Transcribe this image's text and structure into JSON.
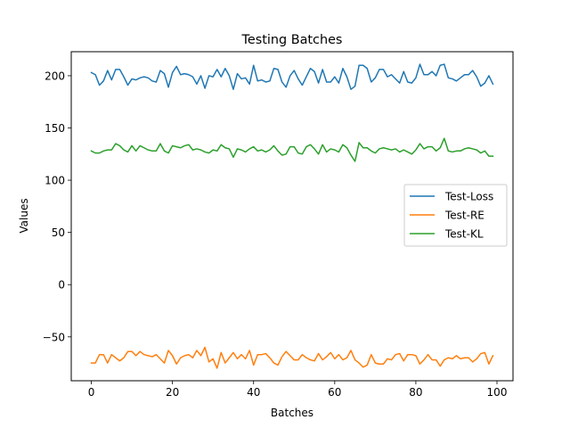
{
  "chart_data": {
    "type": "line",
    "title": "Testing Batches",
    "xlabel": "Batches",
    "ylabel": "Values",
    "xlim": [
      -4.95,
      103.95
    ],
    "ylim": [
      -92,
      223
    ],
    "xticks": [
      0,
      20,
      40,
      60,
      80,
      100
    ],
    "yticks": [
      -50,
      0,
      50,
      100,
      150,
      200
    ],
    "grid": false,
    "legend_position": "center-right",
    "series": [
      {
        "name": "Test-Loss",
        "color": "#1f77b4",
        "values": [
          203,
          201,
          191,
          195,
          205,
          196,
          206,
          206,
          199,
          191,
          197,
          196,
          198,
          199,
          198,
          195,
          194,
          205,
          202,
          189,
          203,
          209,
          201,
          202,
          201,
          199,
          192,
          200,
          188,
          200,
          199,
          206,
          199,
          207,
          200,
          187,
          202,
          197,
          198,
          192,
          210,
          195,
          196,
          194,
          195,
          207,
          206,
          194,
          189,
          200,
          205,
          197,
          191,
          199,
          207,
          204,
          193,
          206,
          194,
          194,
          199,
          193,
          207,
          199,
          187,
          190,
          210,
          210,
          207,
          194,
          198,
          206,
          206,
          199,
          201,
          197,
          193,
          204,
          194,
          193,
          198,
          211,
          201,
          201,
          204,
          200,
          210,
          211,
          198,
          197,
          195,
          198,
          201,
          201,
          205,
          199,
          190,
          193,
          200,
          192
        ]
      },
      {
        "name": "Test-RE",
        "color": "#ff7f0e",
        "values": [
          -75,
          -75,
          -67,
          -67,
          -75,
          -67,
          -70,
          -73,
          -70,
          -64,
          -64,
          -68,
          -64,
          -67,
          -68,
          -69,
          -67,
          -71,
          -75,
          -63,
          -68,
          -76,
          -70,
          -68,
          -67,
          -70,
          -63,
          -68,
          -60,
          -74,
          -71,
          -80,
          -65,
          -75,
          -70,
          -65,
          -71,
          -67,
          -71,
          -63,
          -77,
          -67,
          -67,
          -66,
          -70,
          -75,
          -77,
          -69,
          -64,
          -68,
          -72,
          -72,
          -67,
          -70,
          -72,
          -73,
          -66,
          -72,
          -69,
          -65,
          -71,
          -67,
          -72,
          -70,
          -63,
          -72,
          -75,
          -79,
          -77,
          -67,
          -75,
          -76,
          -76,
          -71,
          -72,
          -67,
          -66,
          -73,
          -67,
          -67,
          -68,
          -76,
          -72,
          -67,
          -72,
          -72,
          -78,
          -72,
          -70,
          -71,
          -68,
          -71,
          -70,
          -70,
          -74,
          -71,
          -66,
          -65,
          -76,
          -68
        ]
      },
      {
        "name": "Test-KL",
        "color": "#2ca02c",
        "values": [
          128,
          126,
          126,
          128,
          129,
          129,
          135,
          133,
          129,
          127,
          133,
          128,
          133,
          131,
          129,
          128,
          128,
          135,
          128,
          126,
          133,
          132,
          131,
          133,
          134,
          129,
          130,
          129,
          127,
          126,
          129,
          128,
          134,
          131,
          130,
          122,
          130,
          129,
          127,
          130,
          132,
          128,
          129,
          127,
          129,
          133,
          128,
          124,
          125,
          132,
          132,
          126,
          125,
          132,
          134,
          130,
          125,
          134,
          127,
          130,
          129,
          127,
          134,
          131,
          124,
          118,
          136,
          131,
          131,
          128,
          126,
          130,
          131,
          130,
          129,
          130,
          127,
          129,
          127,
          125,
          129,
          135,
          130,
          132,
          132,
          128,
          131,
          140,
          128,
          127,
          128,
          128,
          130,
          131,
          130,
          129,
          126,
          128,
          123,
          123
        ]
      }
    ]
  }
}
